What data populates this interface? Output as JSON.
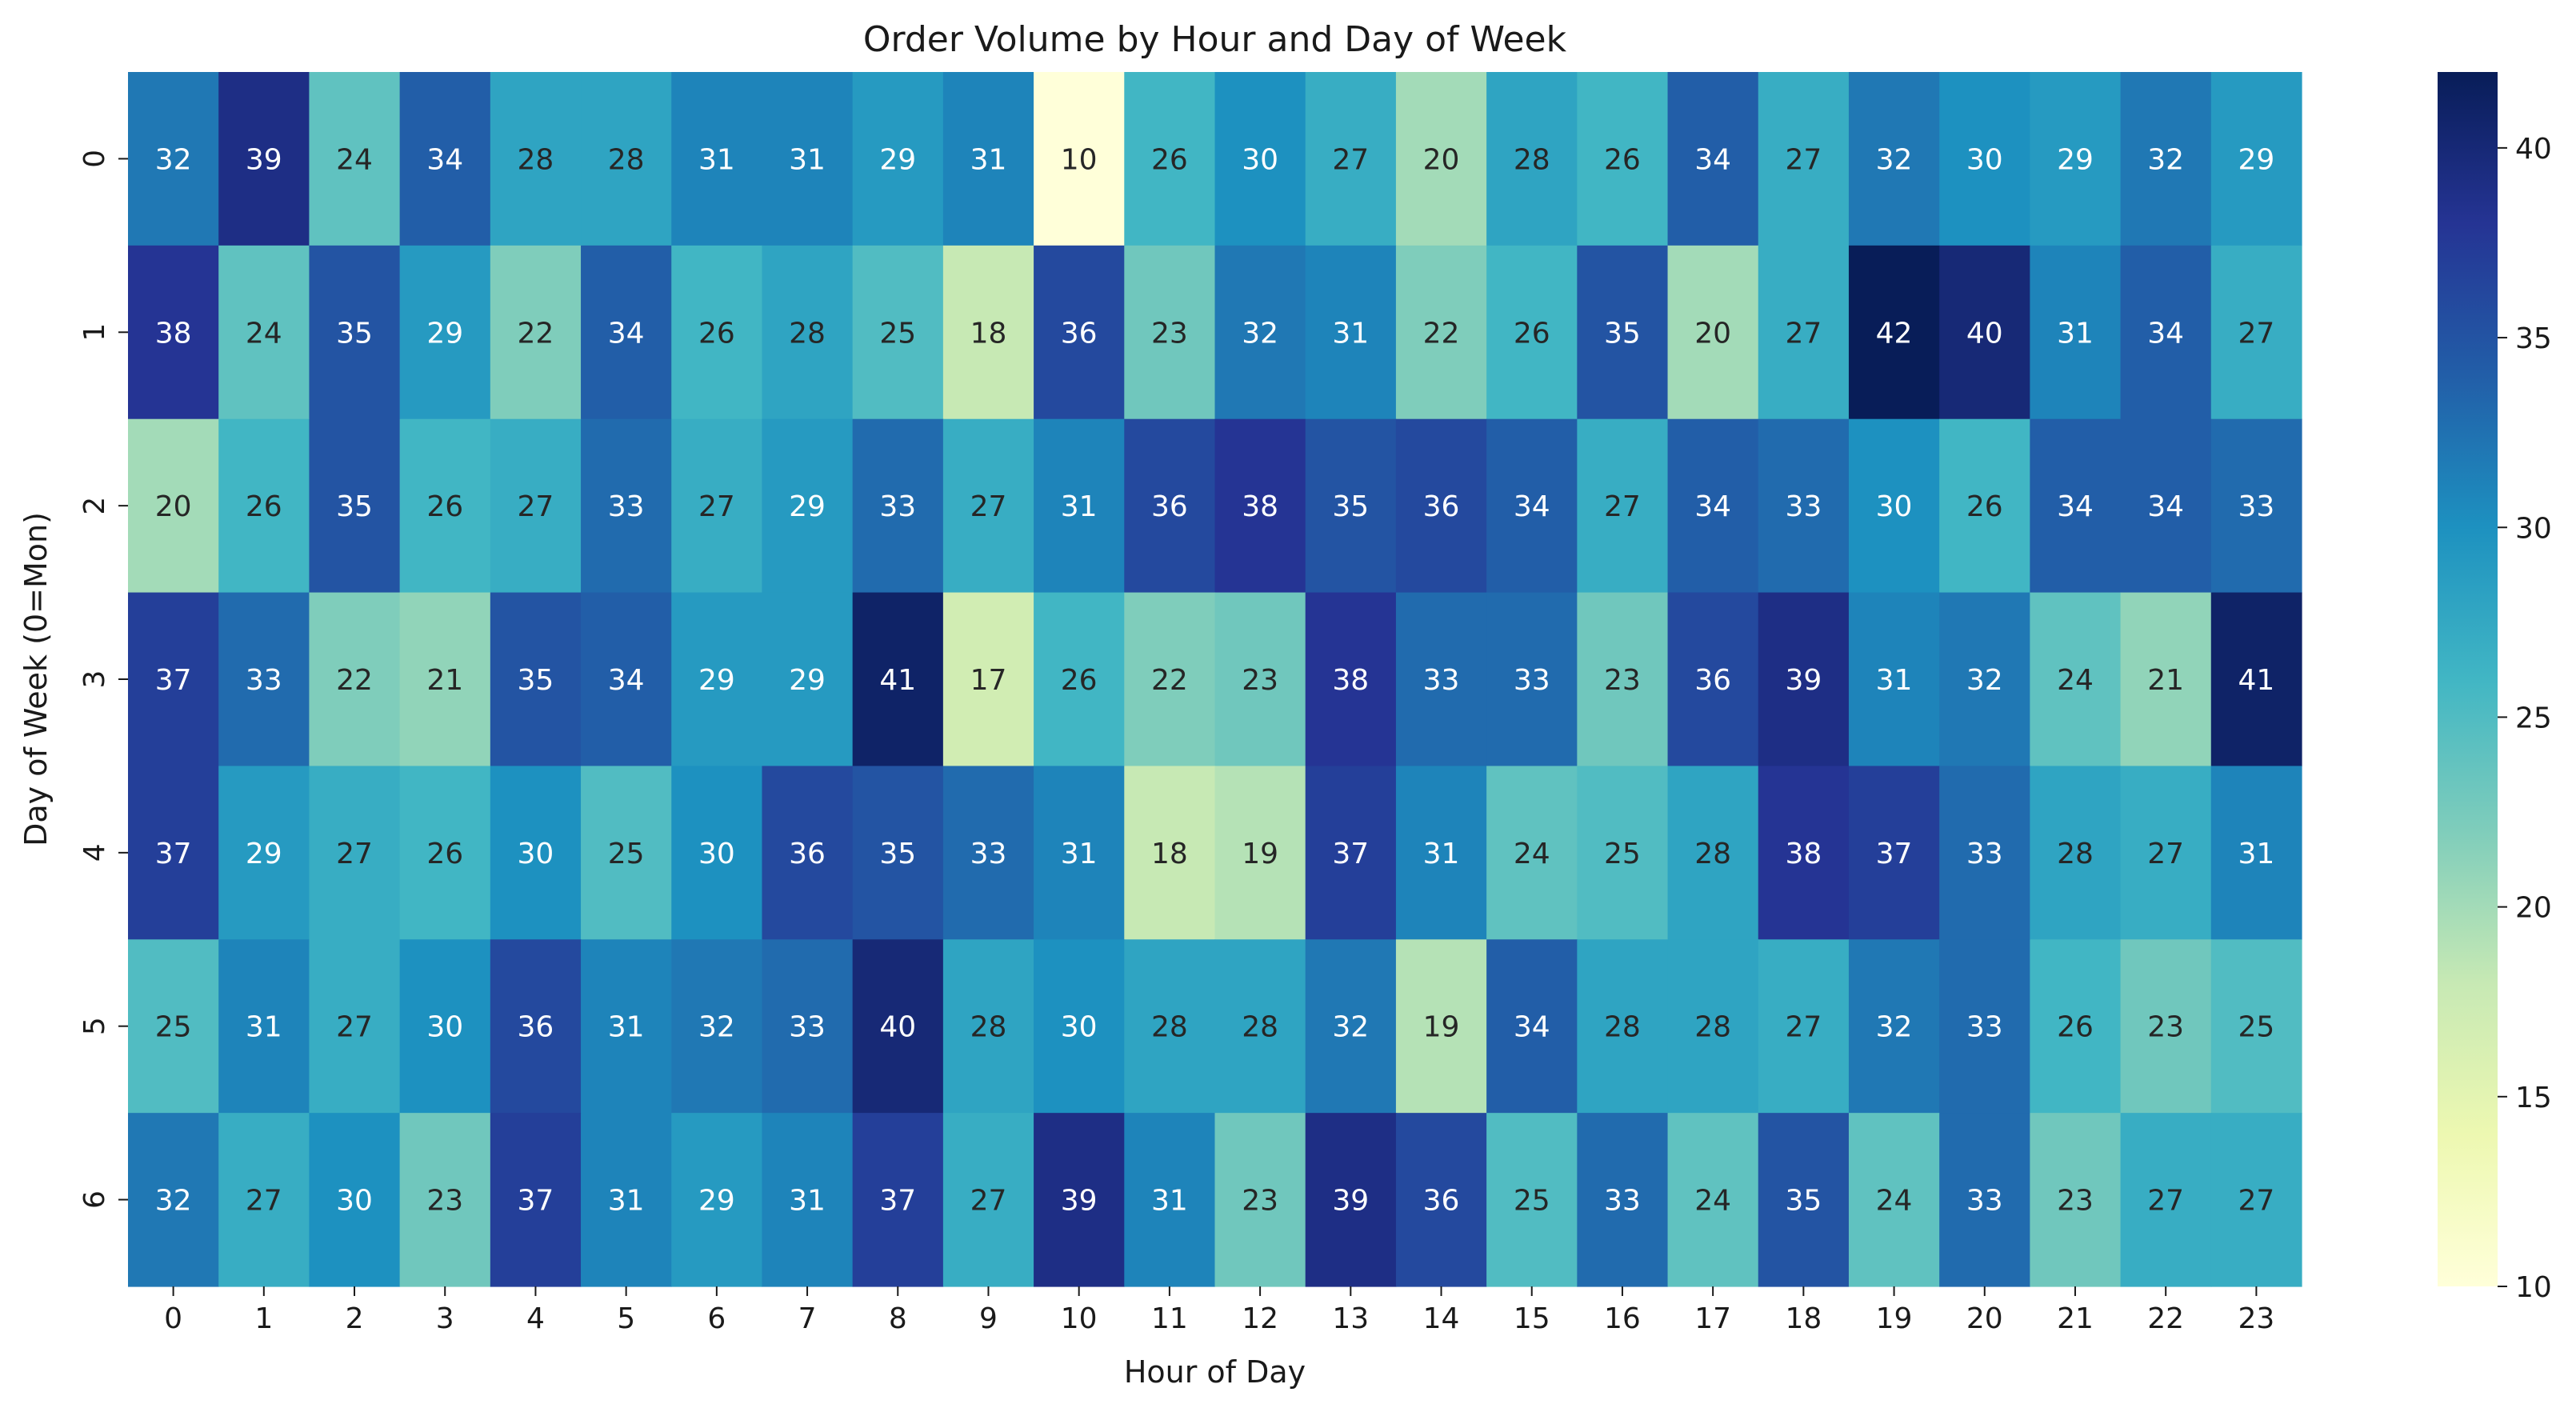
{
  "chart_data": {
    "type": "heatmap",
    "title": "Order Volume by Hour and Day of Week",
    "xlabel": "Hour of Day",
    "ylabel": "Day of Week (0=Mon)",
    "x": [
      "0",
      "1",
      "2",
      "3",
      "4",
      "5",
      "6",
      "7",
      "8",
      "9",
      "10",
      "11",
      "12",
      "13",
      "14",
      "15",
      "16",
      "17",
      "18",
      "19",
      "20",
      "21",
      "22",
      "23"
    ],
    "y": [
      "0",
      "1",
      "2",
      "3",
      "4",
      "5",
      "6"
    ],
    "values": [
      [
        32,
        39,
        24,
        34,
        28,
        28,
        31,
        31,
        29,
        31,
        10,
        26,
        30,
        27,
        20,
        28,
        26,
        34,
        27,
        32,
        30,
        29,
        32,
        29
      ],
      [
        38,
        24,
        35,
        29,
        22,
        34,
        26,
        28,
        25,
        18,
        36,
        23,
        32,
        31,
        22,
        26,
        35,
        20,
        27,
        42,
        40,
        31,
        34,
        27
      ],
      [
        20,
        26,
        35,
        26,
        27,
        33,
        27,
        29,
        33,
        27,
        31,
        36,
        38,
        35,
        36,
        34,
        27,
        34,
        33,
        30,
        26,
        34,
        34,
        33
      ],
      [
        37,
        33,
        22,
        21,
        35,
        34,
        29,
        29,
        41,
        17,
        26,
        22,
        23,
        38,
        33,
        33,
        23,
        36,
        39,
        31,
        32,
        24,
        21,
        41
      ],
      [
        37,
        29,
        27,
        26,
        30,
        25,
        30,
        36,
        35,
        33,
        31,
        18,
        19,
        37,
        31,
        24,
        25,
        28,
        38,
        37,
        33,
        28,
        27,
        31
      ],
      [
        25,
        31,
        27,
        30,
        36,
        31,
        32,
        33,
        40,
        28,
        30,
        28,
        28,
        32,
        19,
        34,
        28,
        28,
        27,
        32,
        33,
        26,
        23,
        25
      ],
      [
        32,
        27,
        30,
        23,
        37,
        31,
        29,
        31,
        37,
        27,
        39,
        31,
        23,
        39,
        36,
        25,
        33,
        24,
        35,
        24,
        33,
        23,
        27,
        27
      ]
    ],
    "colormap": "YlGnBu",
    "colorbar": {
      "min": 10,
      "max": 42,
      "ticks": [
        "10",
        "15",
        "20",
        "25",
        "30",
        "35",
        "40"
      ]
    },
    "annotated": true,
    "grid": false,
    "legend": "colorbar-right"
  }
}
